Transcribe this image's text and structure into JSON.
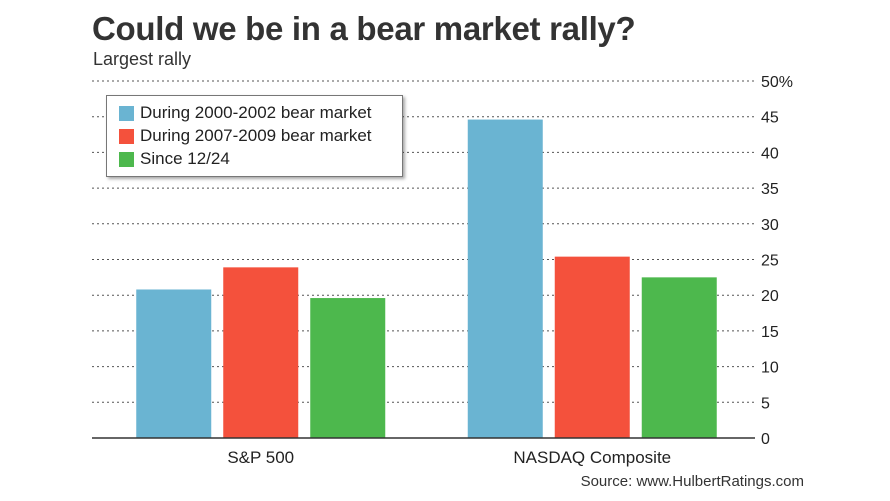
{
  "header": {
    "title": "Could we be in a bear market rally?",
    "subtitle": "Largest rally"
  },
  "footer": {
    "source": "Source: www.HulbertRatings.com"
  },
  "colors": {
    "series_1": "#6ab4d2",
    "series_2": "#f4513c",
    "series_3": "#4db84d",
    "grid": "#555555",
    "axis": "#333333"
  },
  "chart_data": {
    "type": "bar",
    "title": "Could we be in a bear market rally?",
    "subtitle": "Largest rally",
    "categories": [
      "S&P 500",
      "NASDAQ Composite"
    ],
    "series": [
      {
        "name": "During 2000-2002 bear market",
        "values": [
          20.8,
          44.6
        ]
      },
      {
        "name": "During 2007-2009 bear market",
        "values": [
          23.9,
          25.4
        ]
      },
      {
        "name": "Since 12/24",
        "values": [
          19.6,
          22.5
        ]
      }
    ],
    "ylim": [
      0,
      50
    ],
    "yticks": [
      "0",
      "5",
      "10",
      "15",
      "20",
      "25",
      "30",
      "35",
      "40",
      "45",
      "50%"
    ],
    "yaxis_side": "right",
    "grid": true,
    "legend_position": "top-left",
    "xlabel": "",
    "ylabel": ""
  }
}
